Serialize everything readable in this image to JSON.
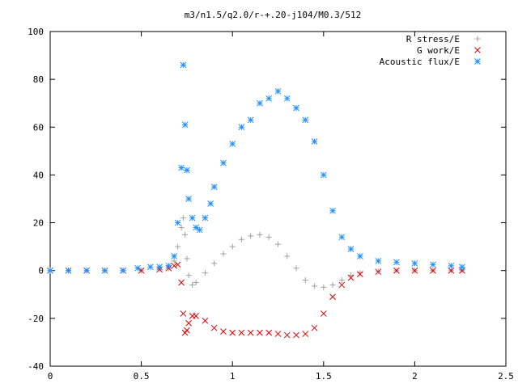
{
  "chart_data": {
    "type": "scatter",
    "title": "m3/n1.5/q2.0/r-+.20-j104/M0.3/512",
    "xlabel": "",
    "ylabel": "",
    "xlim": [
      0,
      2.5
    ],
    "ylim": [
      -40,
      100
    ],
    "x_ticks": [
      "0",
      "0.5",
      "1",
      "1.5",
      "2",
      "2.5"
    ],
    "y_ticks": [
      "100",
      "80",
      "60",
      "40",
      "20",
      "0",
      "-20",
      "-40"
    ],
    "legend_position": "top-right",
    "grid": false,
    "series": [
      {
        "name": "R stress/E",
        "marker": "plus",
        "color": "#a0a0a0",
        "x": [
          0.0,
          0.1,
          0.2,
          0.3,
          0.4,
          0.5,
          0.6,
          0.65,
          0.68,
          0.7,
          0.72,
          0.73,
          0.74,
          0.75,
          0.76,
          0.78,
          0.8,
          0.85,
          0.9,
          0.95,
          1.0,
          1.05,
          1.1,
          1.15,
          1.2,
          1.25,
          1.3,
          1.35,
          1.4,
          1.45,
          1.5,
          1.55,
          1.6,
          1.65,
          1.7,
          1.8,
          1.9,
          2.0,
          2.1,
          2.2,
          2.26
        ],
        "y": [
          0,
          0,
          0,
          0,
          0,
          0,
          0.5,
          1,
          4,
          10,
          18,
          22,
          15,
          5,
          -2,
          -6,
          -5,
          -1,
          3,
          7,
          10,
          13,
          14.5,
          15,
          14,
          11,
          6,
          1,
          -4,
          -6.5,
          -7,
          -6,
          -4,
          -2,
          -1,
          -0.3,
          0,
          0,
          0,
          0,
          0
        ]
      },
      {
        "name": "G work/E",
        "marker": "cross",
        "color": "#e00000",
        "x": [
          0.0,
          0.1,
          0.2,
          0.3,
          0.4,
          0.5,
          0.6,
          0.65,
          0.68,
          0.7,
          0.72,
          0.73,
          0.74,
          0.75,
          0.76,
          0.78,
          0.8,
          0.85,
          0.9,
          0.95,
          1.0,
          1.05,
          1.1,
          1.15,
          1.2,
          1.25,
          1.3,
          1.35,
          1.4,
          1.45,
          1.5,
          1.55,
          1.6,
          1.65,
          1.7,
          1.8,
          1.9,
          2.0,
          2.1,
          2.2,
          2.26
        ],
        "y": [
          0,
          0,
          0,
          0,
          0,
          0,
          0.5,
          1,
          2,
          2.5,
          -5,
          -18,
          -26,
          -25,
          -22,
          -19,
          -19,
          -21,
          -24,
          -25.5,
          -26,
          -26,
          -26,
          -26,
          -26,
          -26.5,
          -27,
          -27,
          -26.5,
          -24,
          -18,
          -11,
          -6,
          -3,
          -1.5,
          -0.5,
          0,
          0,
          0,
          0,
          0
        ]
      },
      {
        "name": "Acoustic flux/E",
        "marker": "star",
        "color": "#1e90ff",
        "x": [
          0.0,
          0.1,
          0.2,
          0.3,
          0.4,
          0.48,
          0.55,
          0.6,
          0.65,
          0.68,
          0.7,
          0.72,
          0.73,
          0.74,
          0.75,
          0.76,
          0.78,
          0.8,
          0.82,
          0.85,
          0.88,
          0.9,
          0.95,
          1.0,
          1.05,
          1.1,
          1.15,
          1.2,
          1.25,
          1.3,
          1.35,
          1.4,
          1.45,
          1.5,
          1.55,
          1.6,
          1.65,
          1.7,
          1.8,
          1.9,
          2.0,
          2.1,
          2.2,
          2.26
        ],
        "y": [
          0,
          0,
          0,
          0,
          0,
          1,
          1.5,
          1.5,
          2,
          6,
          20,
          43,
          86,
          61,
          42,
          30,
          22,
          18,
          17,
          22,
          28,
          35,
          45,
          53,
          60,
          63,
          70,
          72,
          75,
          72,
          68,
          63,
          54,
          40,
          25,
          14,
          9,
          6,
          4,
          3.5,
          3,
          2.5,
          2,
          1.5
        ]
      }
    ]
  }
}
